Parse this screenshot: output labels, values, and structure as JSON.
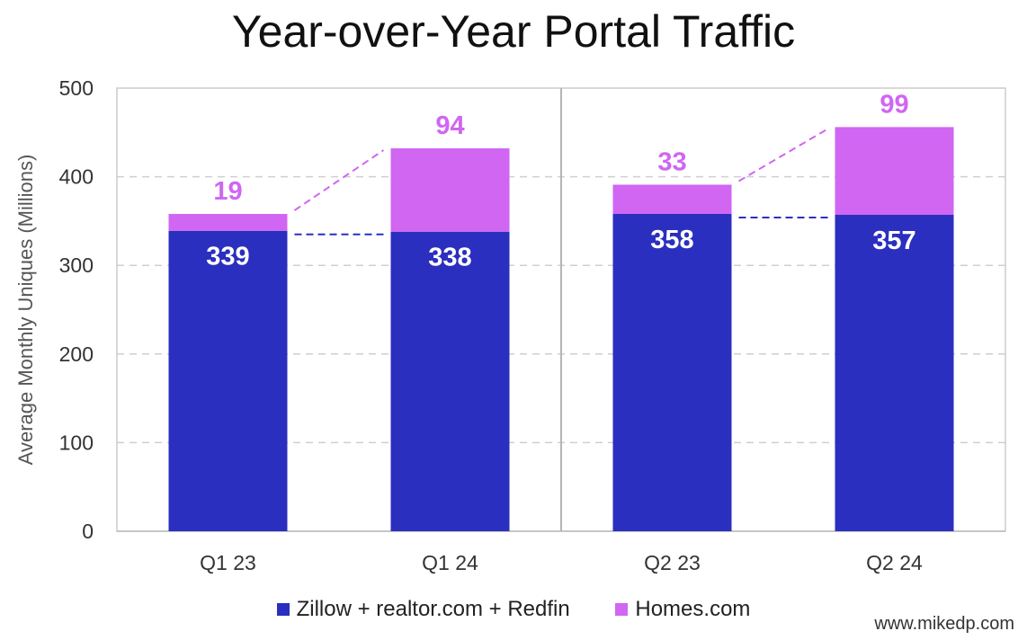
{
  "chart_data": {
    "type": "bar",
    "stacked": true,
    "title": "Year-over-Year Portal Traffic",
    "ylabel": "Average Monthly Uniques (Millions)",
    "xlabel": "",
    "ylim": [
      0,
      500
    ],
    "yticks": [
      "0",
      "100",
      "200",
      "300",
      "400",
      "500"
    ],
    "categories": [
      "Q1 23",
      "Q1 24",
      "Q2 23",
      "Q2 24"
    ],
    "series": [
      {
        "name": "Zillow + realtor.com + Redfin",
        "values": [
          339,
          338,
          358,
          357
        ],
        "value_labels": [
          "339",
          "338",
          "358",
          "357"
        ],
        "color": "#2b2fbf"
      },
      {
        "name": "Homes.com",
        "values": [
          19,
          94,
          33,
          99
        ],
        "value_labels": [
          "19",
          "94",
          "33",
          "99"
        ],
        "color": "#d066f2"
      }
    ],
    "grid": true,
    "legend": "bottom",
    "comparison_lines": true
  },
  "watermark": "www.mikedp.com"
}
